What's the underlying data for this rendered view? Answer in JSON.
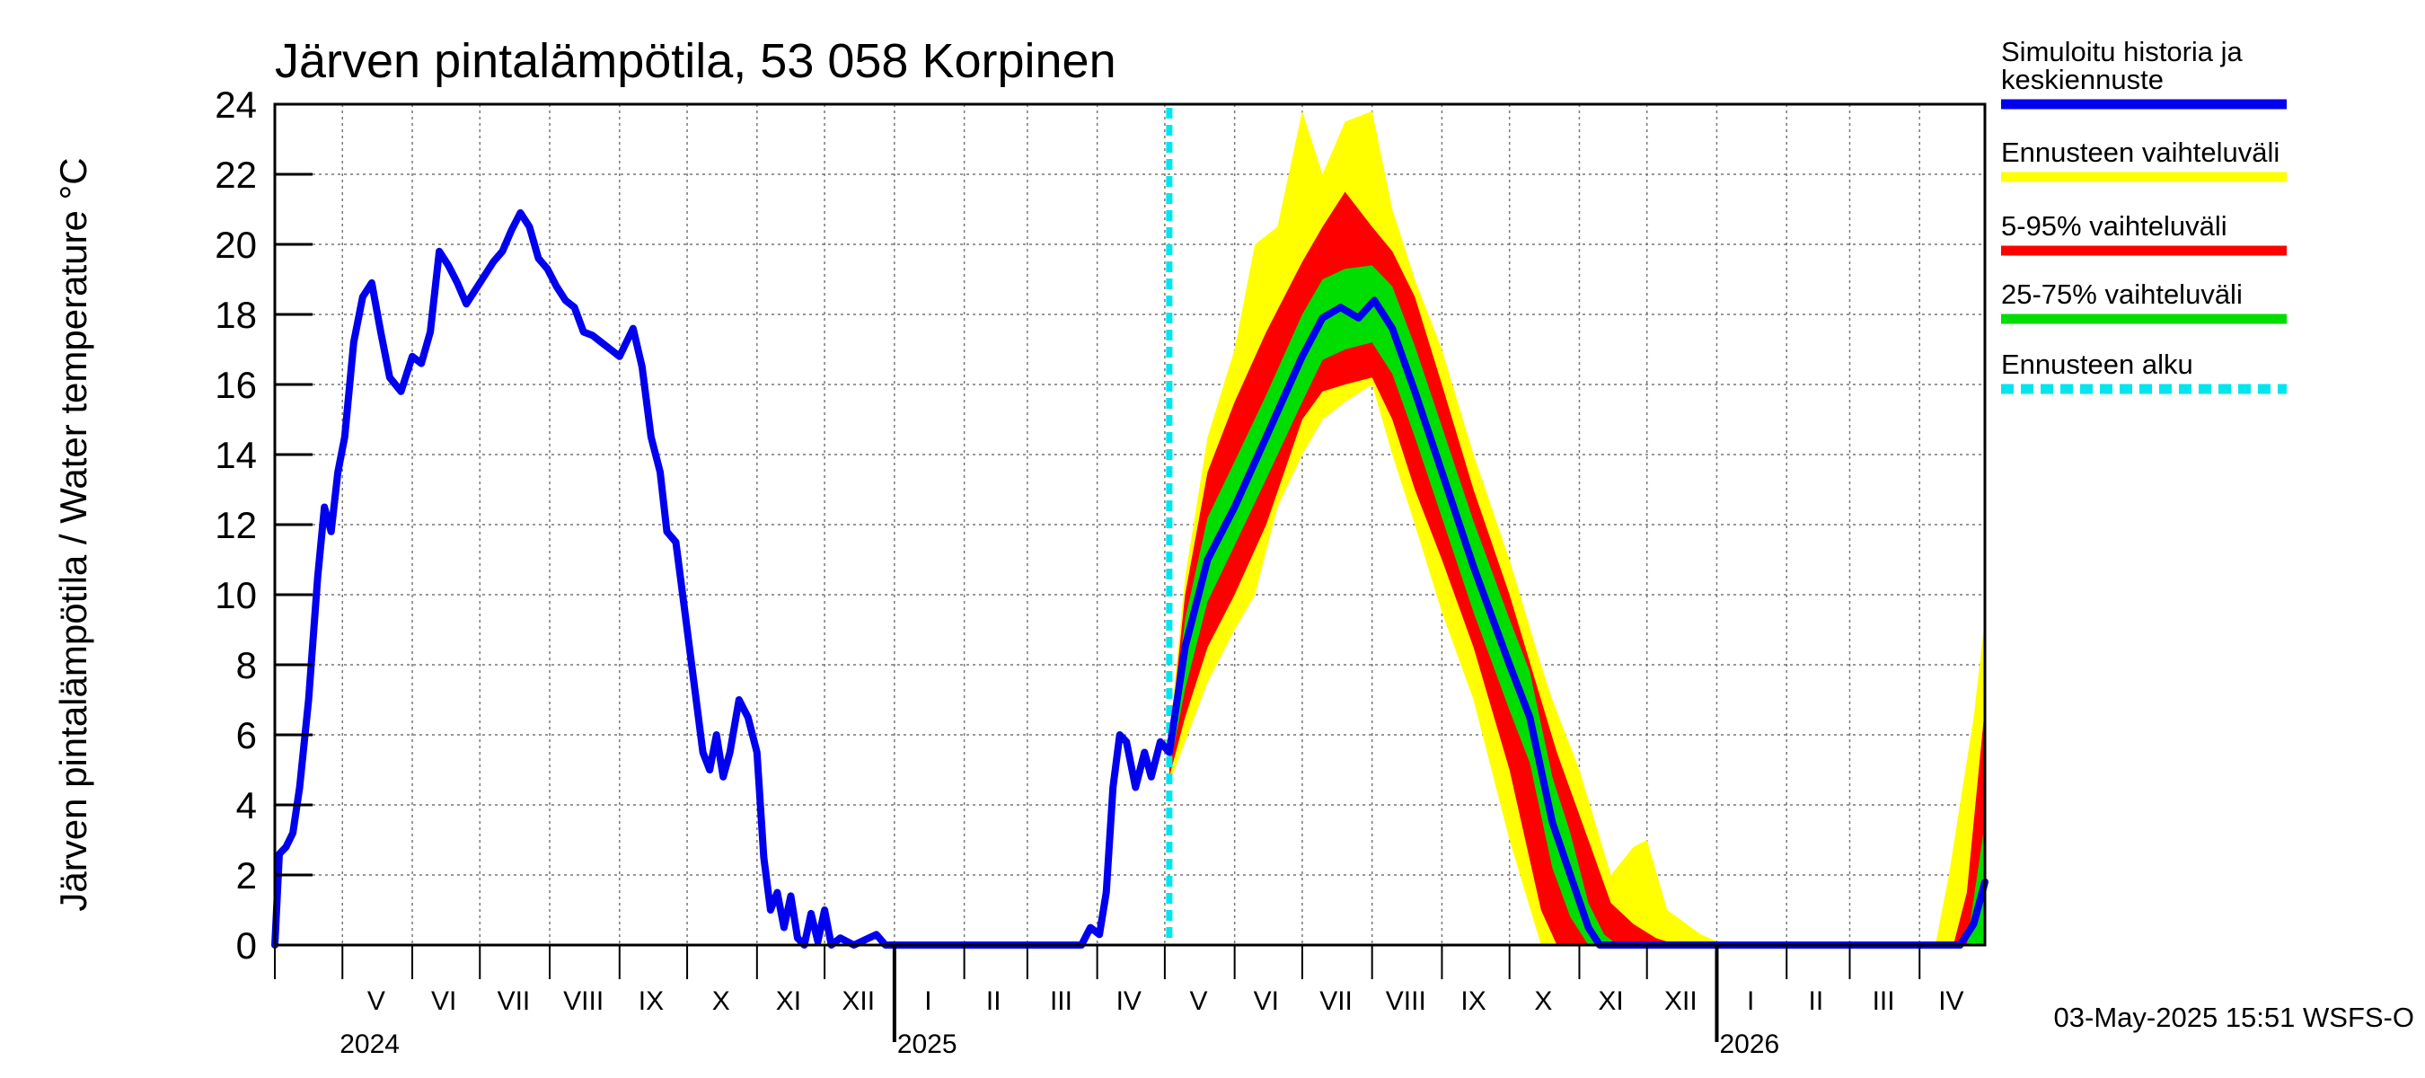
{
  "chart_data": {
    "type": "area",
    "title": "Järven pintalämpötila, 53 058 Korpinen",
    "ylabel": "Järven pintalämpötila / Water temperature °C",
    "ylim": [
      0,
      24
    ],
    "yticks": [
      "0",
      "2",
      "4",
      "6",
      "8",
      "10",
      "12",
      "14",
      "16",
      "18",
      "20",
      "22",
      "24"
    ],
    "xlim": [
      "2024-04-01",
      "2026-04-30"
    ],
    "months": [
      {
        "label": "V",
        "date": "2024-05-16"
      },
      {
        "label": "VI",
        "date": "2024-06-15"
      },
      {
        "label": "VII",
        "date": "2024-07-16"
      },
      {
        "label": "VIII",
        "date": "2024-08-16"
      },
      {
        "label": "IX",
        "date": "2024-09-15"
      },
      {
        "label": "X",
        "date": "2024-10-16"
      },
      {
        "label": "XI",
        "date": "2024-11-15"
      },
      {
        "label": "XII",
        "date": "2024-12-16"
      },
      {
        "label": "I",
        "date": "2025-01-16"
      },
      {
        "label": "II",
        "date": "2025-02-14"
      },
      {
        "label": "III",
        "date": "2025-03-16"
      },
      {
        "label": "IV",
        "date": "2025-04-15"
      },
      {
        "label": "V",
        "date": "2025-05-16"
      },
      {
        "label": "VI",
        "date": "2025-06-15"
      },
      {
        "label": "VII",
        "date": "2025-07-16"
      },
      {
        "label": "VIII",
        "date": "2025-08-16"
      },
      {
        "label": "IX",
        "date": "2025-09-15"
      },
      {
        "label": "X",
        "date": "2025-10-16"
      },
      {
        "label": "XI",
        "date": "2025-11-15"
      },
      {
        "label": "XII",
        "date": "2025-12-16"
      },
      {
        "label": "I",
        "date": "2026-01-16"
      },
      {
        "label": "II",
        "date": "2026-02-14"
      },
      {
        "label": "III",
        "date": "2026-03-16"
      },
      {
        "label": "IV",
        "date": "2026-04-15"
      }
    ],
    "years": [
      {
        "label": "2024",
        "date": "2024-05-01"
      },
      {
        "label": "2025",
        "date": "2025-01-01"
      },
      {
        "label": "2026",
        "date": "2026-01-01"
      }
    ],
    "forecast_start": "2025-05-03",
    "series": [
      {
        "name": "Simuloitu historia ja keskiennuste",
        "color": "#0000ee",
        "points": [
          [
            "2024-04-01",
            0.0
          ],
          [
            "2024-04-03",
            2.6
          ],
          [
            "2024-04-06",
            2.8
          ],
          [
            "2024-04-09",
            3.2
          ],
          [
            "2024-04-12",
            4.5
          ],
          [
            "2024-04-16",
            7.0
          ],
          [
            "2024-04-20",
            10.5
          ],
          [
            "2024-04-23",
            12.5
          ],
          [
            "2024-04-26",
            11.8
          ],
          [
            "2024-04-29",
            13.5
          ],
          [
            "2024-05-02",
            14.5
          ],
          [
            "2024-05-06",
            17.2
          ],
          [
            "2024-05-10",
            18.5
          ],
          [
            "2024-05-14",
            18.9
          ],
          [
            "2024-05-18",
            17.5
          ],
          [
            "2024-05-22",
            16.2
          ],
          [
            "2024-05-27",
            15.8
          ],
          [
            "2024-06-01",
            16.8
          ],
          [
            "2024-06-05",
            16.6
          ],
          [
            "2024-06-09",
            17.5
          ],
          [
            "2024-06-13",
            19.8
          ],
          [
            "2024-06-17",
            19.4
          ],
          [
            "2024-06-21",
            18.9
          ],
          [
            "2024-06-25",
            18.3
          ],
          [
            "2024-06-29",
            18.7
          ],
          [
            "2024-07-03",
            19.1
          ],
          [
            "2024-07-07",
            19.5
          ],
          [
            "2024-07-11",
            19.8
          ],
          [
            "2024-07-15",
            20.4
          ],
          [
            "2024-07-19",
            20.9
          ],
          [
            "2024-07-23",
            20.5
          ],
          [
            "2024-07-27",
            19.6
          ],
          [
            "2024-07-31",
            19.3
          ],
          [
            "2024-08-04",
            18.8
          ],
          [
            "2024-08-08",
            18.4
          ],
          [
            "2024-08-12",
            18.2
          ],
          [
            "2024-08-16",
            17.5
          ],
          [
            "2024-08-20",
            17.4
          ],
          [
            "2024-08-24",
            17.2
          ],
          [
            "2024-08-28",
            17.0
          ],
          [
            "2024-09-01",
            16.8
          ],
          [
            "2024-09-04",
            17.2
          ],
          [
            "2024-09-07",
            17.6
          ],
          [
            "2024-09-11",
            16.5
          ],
          [
            "2024-09-15",
            14.5
          ],
          [
            "2024-09-19",
            13.5
          ],
          [
            "2024-09-22",
            11.8
          ],
          [
            "2024-09-26",
            11.5
          ],
          [
            "2024-09-30",
            9.5
          ],
          [
            "2024-10-04",
            7.5
          ],
          [
            "2024-10-08",
            5.5
          ],
          [
            "2024-10-11",
            5.0
          ],
          [
            "2024-10-14",
            6.0
          ],
          [
            "2024-10-17",
            4.8
          ],
          [
            "2024-10-20",
            5.5
          ],
          [
            "2024-10-24",
            7.0
          ],
          [
            "2024-10-28",
            6.5
          ],
          [
            "2024-11-01",
            5.5
          ],
          [
            "2024-11-04",
            2.5
          ],
          [
            "2024-11-07",
            1.0
          ],
          [
            "2024-11-10",
            1.5
          ],
          [
            "2024-11-13",
            0.5
          ],
          [
            "2024-11-16",
            1.4
          ],
          [
            "2024-11-19",
            0.2
          ],
          [
            "2024-11-22",
            0.0
          ],
          [
            "2024-11-25",
            0.9
          ],
          [
            "2024-11-28",
            0.1
          ],
          [
            "2024-12-01",
            1.0
          ],
          [
            "2024-12-04",
            0.0
          ],
          [
            "2024-12-08",
            0.2
          ],
          [
            "2024-12-14",
            0.0
          ],
          [
            "2024-12-24",
            0.3
          ],
          [
            "2024-12-28",
            0.0
          ],
          [
            "2025-03-25",
            0.0
          ],
          [
            "2025-03-29",
            0.5
          ],
          [
            "2025-04-02",
            0.3
          ],
          [
            "2025-04-05",
            1.5
          ],
          [
            "2025-04-08",
            4.5
          ],
          [
            "2025-04-11",
            6.0
          ],
          [
            "2025-04-14",
            5.8
          ],
          [
            "2025-04-18",
            4.5
          ],
          [
            "2025-04-22",
            5.5
          ],
          [
            "2025-04-25",
            4.8
          ],
          [
            "2025-04-29",
            5.8
          ],
          [
            "2025-05-03",
            5.5
          ],
          [
            "2025-05-10",
            8.5
          ],
          [
            "2025-05-20",
            11.0
          ],
          [
            "2025-06-01",
            12.5
          ],
          [
            "2025-06-15",
            14.5
          ],
          [
            "2025-07-01",
            16.8
          ],
          [
            "2025-07-10",
            17.9
          ],
          [
            "2025-07-18",
            18.2
          ],
          [
            "2025-07-26",
            17.9
          ],
          [
            "2025-08-02",
            18.4
          ],
          [
            "2025-08-10",
            17.6
          ],
          [
            "2025-08-20",
            15.8
          ],
          [
            "2025-09-01",
            13.5
          ],
          [
            "2025-09-15",
            10.8
          ],
          [
            "2025-10-01",
            8.0
          ],
          [
            "2025-10-10",
            6.5
          ],
          [
            "2025-10-20",
            3.5
          ],
          [
            "2025-10-28",
            2.0
          ],
          [
            "2025-11-05",
            0.5
          ],
          [
            "2025-11-10",
            0.0
          ],
          [
            "2026-04-19",
            0.0
          ],
          [
            "2026-04-25",
            0.6
          ],
          [
            "2026-04-30",
            1.8
          ]
        ]
      },
      {
        "name": "Ennusteen vaihteluväli",
        "color": "#ffff00",
        "band": [
          [
            "2025-05-03",
            4.6,
            5.9
          ],
          [
            "2025-05-10",
            5.8,
            10.5
          ],
          [
            "2025-05-20",
            7.5,
            14.5
          ],
          [
            "2025-06-01",
            9.0,
            17.0
          ],
          [
            "2025-06-10",
            10.0,
            20.0
          ],
          [
            "2025-06-20",
            12.5,
            20.5
          ],
          [
            "2025-07-01",
            14.0,
            23.8
          ],
          [
            "2025-07-10",
            15.0,
            22.0
          ],
          [
            "2025-07-20",
            15.5,
            23.5
          ],
          [
            "2025-08-01",
            16.0,
            23.8
          ],
          [
            "2025-08-10",
            14.0,
            21.0
          ],
          [
            "2025-08-20",
            12.0,
            19.0
          ],
          [
            "2025-09-01",
            9.5,
            17.0
          ],
          [
            "2025-09-15",
            7.0,
            14.0
          ],
          [
            "2025-10-01",
            3.0,
            11.0
          ],
          [
            "2025-10-15",
            0.0,
            8.0
          ],
          [
            "2025-10-20",
            0.0,
            7.0
          ],
          [
            "2025-11-01",
            0.0,
            5.0
          ],
          [
            "2025-11-15",
            0.0,
            2.0
          ],
          [
            "2025-11-25",
            0.0,
            2.8
          ],
          [
            "2025-12-01",
            0.0,
            3.0
          ],
          [
            "2025-12-10",
            0.0,
            1.0
          ],
          [
            "2025-12-25",
            0.0,
            0.3
          ],
          [
            "2026-01-05",
            0.0,
            0.0
          ],
          [
            "2026-04-08",
            0.0,
            0.0
          ],
          [
            "2026-04-14",
            0.0,
            2.0
          ],
          [
            "2026-04-25",
            0.0,
            6.5
          ],
          [
            "2026-04-30",
            0.0,
            9.3
          ]
        ]
      },
      {
        "name": "5-95% vaihteluväli",
        "color": "#ff0000",
        "band": [
          [
            "2025-05-03",
            4.8,
            5.7
          ],
          [
            "2025-05-10",
            6.5,
            10.0
          ],
          [
            "2025-05-20",
            8.5,
            13.5
          ],
          [
            "2025-06-01",
            10.0,
            15.5
          ],
          [
            "2025-06-15",
            12.0,
            17.5
          ],
          [
            "2025-07-01",
            15.0,
            19.5
          ],
          [
            "2025-07-10",
            15.8,
            20.5
          ],
          [
            "2025-07-20",
            16.0,
            21.5
          ],
          [
            "2025-08-01",
            16.2,
            20.5
          ],
          [
            "2025-08-10",
            15.0,
            19.8
          ],
          [
            "2025-08-20",
            13.0,
            18.5
          ],
          [
            "2025-09-01",
            11.0,
            16.0
          ],
          [
            "2025-09-15",
            8.5,
            13.0
          ],
          [
            "2025-10-01",
            5.0,
            10.0
          ],
          [
            "2025-10-15",
            1.0,
            7.0
          ],
          [
            "2025-10-22",
            0.0,
            5.5
          ],
          [
            "2025-11-05",
            0.0,
            3.0
          ],
          [
            "2025-11-15",
            0.0,
            1.2
          ],
          [
            "2025-11-25",
            0.0,
            0.6
          ],
          [
            "2025-12-05",
            0.0,
            0.2
          ],
          [
            "2025-12-15",
            0.0,
            0.0
          ],
          [
            "2026-04-16",
            0.0,
            0.0
          ],
          [
            "2026-04-22",
            0.0,
            1.5
          ],
          [
            "2026-04-30",
            0.0,
            6.8
          ]
        ]
      },
      {
        "name": "25-75% vaihteluväli",
        "color": "#00dd00",
        "band": [
          [
            "2025-05-03",
            5.0,
            5.6
          ],
          [
            "2025-05-10",
            7.3,
            9.3
          ],
          [
            "2025-05-20",
            9.8,
            12.2
          ],
          [
            "2025-06-01",
            11.4,
            13.8
          ],
          [
            "2025-06-15",
            13.3,
            15.7
          ],
          [
            "2025-07-01",
            15.5,
            18.0
          ],
          [
            "2025-07-10",
            16.7,
            19.0
          ],
          [
            "2025-07-20",
            17.0,
            19.3
          ],
          [
            "2025-08-01",
            17.2,
            19.4
          ],
          [
            "2025-08-10",
            16.3,
            18.8
          ],
          [
            "2025-08-20",
            14.5,
            17.1
          ],
          [
            "2025-09-01",
            12.2,
            14.8
          ],
          [
            "2025-09-15",
            9.5,
            12.1
          ],
          [
            "2025-10-01",
            6.7,
            9.3
          ],
          [
            "2025-10-10",
            5.2,
            7.8
          ],
          [
            "2025-10-20",
            2.2,
            4.8
          ],
          [
            "2025-10-28",
            0.8,
            3.2
          ],
          [
            "2025-11-05",
            0.0,
            1.2
          ],
          [
            "2025-11-12",
            0.0,
            0.3
          ],
          [
            "2025-11-18",
            0.0,
            0.0
          ],
          [
            "2026-04-22",
            0.0,
            0.0
          ],
          [
            "2026-04-30",
            0.0,
            3.5
          ]
        ]
      },
      {
        "name": "Ennusteen alku",
        "color": "#00e5ee"
      }
    ],
    "legend_lines": [
      [
        "Simuloitu historia ja",
        "keskiennuste"
      ],
      [
        "Ennusteen vaihteluväli"
      ],
      [
        "5-95% vaihteluväli"
      ],
      [
        "25-75% vaihteluväli"
      ],
      [
        "Ennusteen alku"
      ]
    ],
    "legend_position": "right",
    "grid": true
  },
  "footer": "03-May-2025 15:51 WSFS-O"
}
